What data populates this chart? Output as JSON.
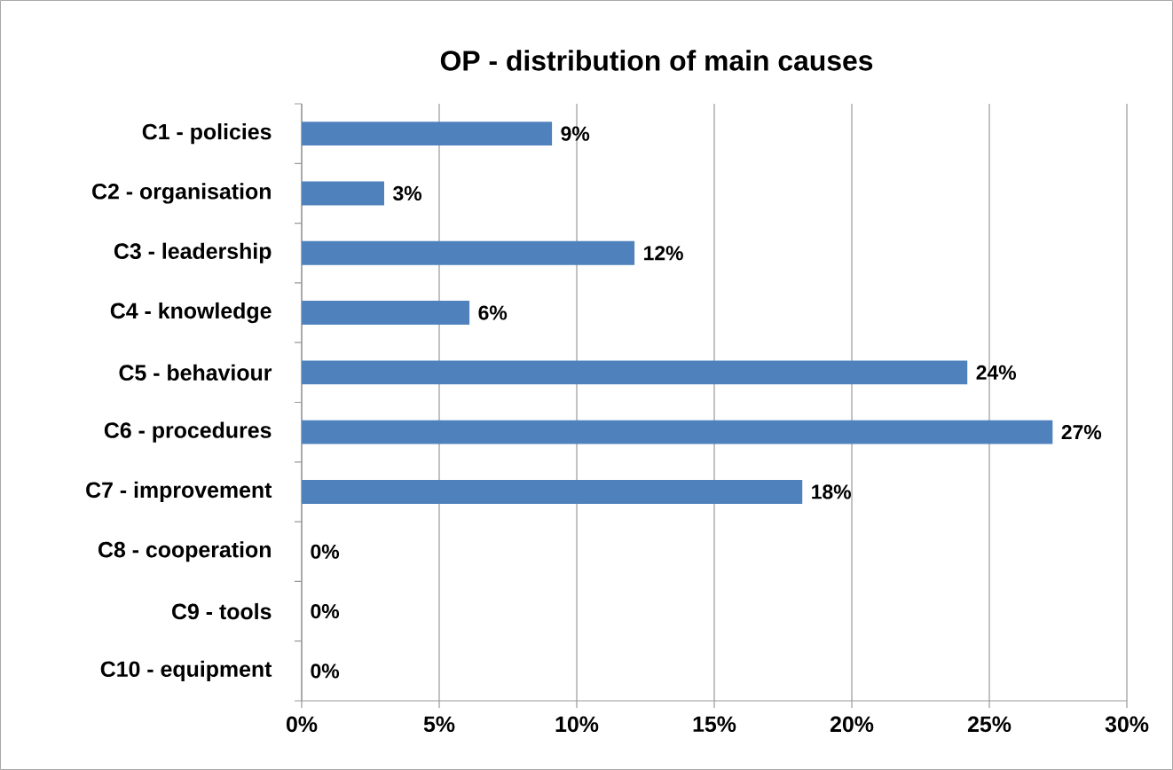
{
  "chart_data": {
    "type": "bar",
    "orientation": "horizontal",
    "title": "OP - distribution of main causes",
    "categories": [
      "C1 - policies",
      "C2 - organisation",
      "C3 - leadership",
      "C4 - knowledge",
      "C5 - behaviour",
      "C6 - procedures",
      "C7 - improvement",
      "C8 - cooperation",
      "C9 - tools",
      "C10 - equipment"
    ],
    "values": [
      9.1,
      3.0,
      12.1,
      6.1,
      24.2,
      27.3,
      18.2,
      0,
      0,
      0
    ],
    "value_labels": [
      "9%",
      "3%",
      "12%",
      "6%",
      "24%",
      "27%",
      "18%",
      "0%",
      "0%",
      "0%"
    ],
    "color": "#4f81bd",
    "xlim": [
      0,
      30
    ],
    "xticks": [
      {
        "value": 0,
        "label": "0%"
      },
      {
        "value": 5,
        "label": "5%"
      },
      {
        "value": 10,
        "label": "10%"
      },
      {
        "value": 15,
        "label": "15%"
      },
      {
        "value": 20,
        "label": "20%"
      },
      {
        "value": 25,
        "label": "25%"
      },
      {
        "value": 30,
        "label": "30%"
      }
    ],
    "grid": "x"
  }
}
